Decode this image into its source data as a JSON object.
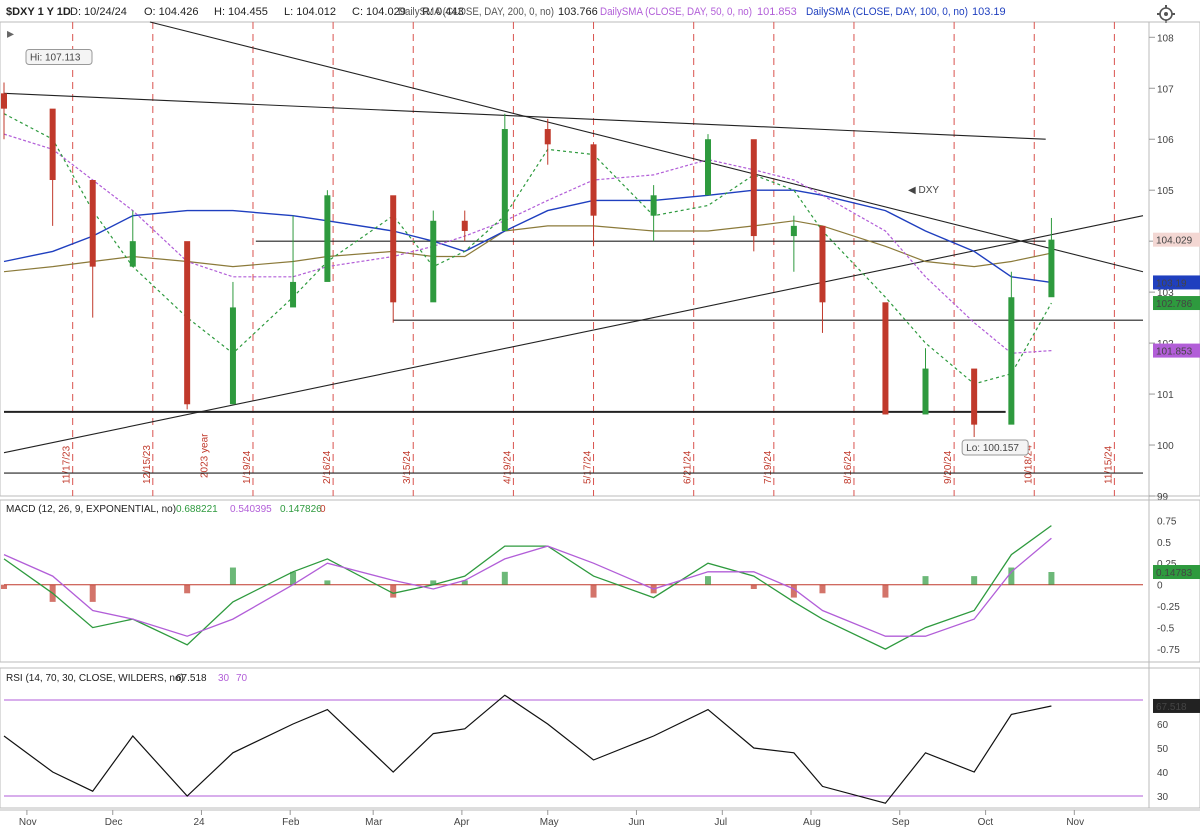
{
  "header": {
    "symbol": "$DXY 1 Y 1D",
    "date": "D: 10/24/24",
    "open": "O: 104.426",
    "high": "H: 104.455",
    "low": "L: 104.012",
    "close": "C: 104.029",
    "range": "R: 0.443",
    "sma200_label": "DailySMA (CLOSE, DAY, 200, 0, no)",
    "sma200_value": "103.766",
    "sma50_label": "DailySMA (CLOSE, DAY, 50, 0, no)",
    "sma50_value": "101.853",
    "sma100_label": "DailySMA (CLOSE, DAY, 100, 0, no)",
    "sma100_value": "103.19",
    "sma20_label": "DailySMA (CLOSE, DAY, 20,"
  },
  "icons": {
    "settings": "gear-icon",
    "expand": "expand-icon",
    "collapse": "collapse-icon"
  },
  "colors": {
    "up": "#2e9a3e",
    "down": "#c0392b",
    "sma200": "#8b7a3a",
    "sma100": "#1f3fbf",
    "sma50": "#b25ed8",
    "sma20": "#2e9a3e",
    "trend": "#222222",
    "vline": "#d9534f",
    "rsi_band": "#b25ed8"
  },
  "annotations": {
    "hi_label": "Hi: 107.113",
    "lo_label": "Lo: 100.157",
    "symbol_marker": "DXY",
    "year_marker": "2023 year",
    "last_price": "104.029",
    "sma100_tag": "103.19",
    "sma20_tag": "102.786",
    "sma50_tag": "101.853"
  },
  "axes": {
    "x_months": [
      "Nov",
      "Dec",
      "24",
      "Feb",
      "Mar",
      "Apr",
      "May",
      "Jun",
      "Jul",
      "Aug",
      "Sep",
      "Oct",
      "Nov"
    ],
    "price_ticks": [
      "108",
      "107",
      "106",
      "105",
      "104",
      "103",
      "102",
      "101",
      "100",
      "99"
    ],
    "vertical_dates": [
      "11/17/23",
      "12/15/23",
      "1/19/24",
      "2/16/24",
      "3/15/24",
      "4/19/24",
      "5/17/24",
      "6/21/24",
      "7/19/24",
      "8/16/24",
      "9/20/24",
      "10/18/24",
      "11/15/24"
    ],
    "macd_ticks": [
      "0.75",
      "0.5",
      "0.25",
      "0",
      "-0.25",
      "-0.5",
      "-0.75"
    ],
    "rsi_ticks": [
      "60",
      "50",
      "40",
      "30"
    ]
  },
  "macd": {
    "label": "MACD (12, 26, 9, EXPONENTIAL, no)",
    "value": "0.688221",
    "avg": "0.540395",
    "diff": "0.147826",
    "zero": "0",
    "tag": "0.14783"
  },
  "rsi": {
    "label": "RSI (14, 70, 30, CLOSE, WILDERS, no)",
    "value": "67.518",
    "low": "30",
    "high": "70",
    "tag": "67.518"
  },
  "chart_data": [
    {
      "type": "candlestick",
      "title": "$DXY 1 Y 1D",
      "ylim": [
        99,
        108.3
      ],
      "x_range": [
        "2023-10-24",
        "2024-11-25"
      ],
      "dates": [
        "2023-10-24",
        "2023-11-10",
        "2023-11-24",
        "2023-12-08",
        "2023-12-27",
        "2024-01-12",
        "2024-02-02",
        "2024-02-14",
        "2024-03-08",
        "2024-03-22",
        "2024-04-02",
        "2024-04-16",
        "2024-05-01",
        "2024-05-17",
        "2024-06-07",
        "2024-06-26",
        "2024-07-12",
        "2024-07-26",
        "2024-08-05",
        "2024-08-27",
        "2024-09-10",
        "2024-09-27",
        "2024-10-10",
        "2024-10-24"
      ],
      "close": [
        106.6,
        105.2,
        103.5,
        104.0,
        100.8,
        102.7,
        103.2,
        104.9,
        102.8,
        104.4,
        104.2,
        106.2,
        105.9,
        104.5,
        104.9,
        106.0,
        104.1,
        104.3,
        102.8,
        100.6,
        101.5,
        100.4,
        102.9,
        104.03
      ],
      "high": [
        107.113,
        105.7,
        104.0,
        104.6,
        101.4,
        103.2,
        104.5,
        105.0,
        103.4,
        104.6,
        104.6,
        106.5,
        106.4,
        104.9,
        105.1,
        106.1,
        104.6,
        104.5,
        103.4,
        101.3,
        101.9,
        101.2,
        103.4,
        104.455
      ],
      "low": [
        106.0,
        104.3,
        102.5,
        103.6,
        100.7,
        102.2,
        102.9,
        103.9,
        102.4,
        103.4,
        104.0,
        105.8,
        105.5,
        103.9,
        104.0,
        105.5,
        103.8,
        103.4,
        102.2,
        100.6,
        100.8,
        100.157,
        102.4,
        104.012
      ],
      "hi": 107.113,
      "lo": 100.157,
      "last": 104.029,
      "series": [
        {
          "name": "DailySMA (CLOSE, DAY, 200, 0, no)",
          "values": [
            103.4,
            103.5,
            103.6,
            103.7,
            103.6,
            103.5,
            103.6,
            103.7,
            103.8,
            103.7,
            103.7,
            104.2,
            104.3,
            104.3,
            104.2,
            104.2,
            104.3,
            104.4,
            104.3,
            103.9,
            103.6,
            103.5,
            103.6,
            103.766
          ]
        },
        {
          "name": "DailySMA (CLOSE, DAY, 100, 0, no)",
          "values": [
            103.6,
            103.8,
            104.1,
            104.5,
            104.6,
            104.6,
            104.5,
            104.4,
            104.2,
            104.0,
            103.8,
            104.2,
            104.6,
            104.8,
            104.8,
            104.9,
            105.0,
            105.0,
            104.9,
            104.6,
            104.2,
            103.8,
            103.3,
            103.19
          ]
        },
        {
          "name": "DailySMA (CLOSE, DAY, 50, 0, no)",
          "values": [
            106.1,
            105.8,
            105.2,
            104.6,
            103.6,
            103.3,
            103.3,
            103.5,
            103.7,
            103.9,
            104.1,
            104.4,
            104.8,
            105.2,
            105.3,
            105.6,
            105.4,
            105.2,
            104.9,
            104.2,
            103.3,
            102.4,
            101.8,
            101.853
          ]
        },
        {
          "name": "DailySMA (CLOSE, DAY, 20, 0, no)",
          "values": [
            106.5,
            106.0,
            104.6,
            103.5,
            102.5,
            101.8,
            102.9,
            103.6,
            104.5,
            103.5,
            103.8,
            104.5,
            105.8,
            105.7,
            104.5,
            104.7,
            105.3,
            105.0,
            104.2,
            102.9,
            102.0,
            101.2,
            101.4,
            102.786
          ]
        }
      ],
      "trendlines": [
        {
          "from": [
            "2023-10-24",
            106.9
          ],
          "to": [
            "2024-10-22",
            106.0
          ]
        },
        {
          "from": [
            "2023-10-24",
            99.85
          ],
          "to": [
            "2024-11-25",
            104.5
          ]
        },
        {
          "from": [
            "2023-12-14",
            108.3
          ],
          "to": [
            "2024-11-25",
            103.4
          ]
        },
        {
          "y": 104.0,
          "from_date": "2024-01-20",
          "to_date": "2024-10-22"
        },
        {
          "y": 102.45,
          "from_date": "2024-03-08",
          "to_date": "2024-11-25"
        },
        {
          "y": 100.65,
          "from_date": "2023-10-24",
          "to_date": "2024-10-08"
        },
        {
          "y": 99.45,
          "from_date": "2023-10-24",
          "to_date": "2024-11-25"
        }
      ]
    },
    {
      "type": "line",
      "title": "MACD (12, 26, 9, EXPONENTIAL, no)",
      "ylim": [
        -0.9,
        0.8
      ],
      "dates": [
        "2023-10-24",
        "2023-11-10",
        "2023-11-24",
        "2023-12-08",
        "2023-12-27",
        "2024-01-12",
        "2024-02-02",
        "2024-02-14",
        "2024-03-08",
        "2024-03-22",
        "2024-04-02",
        "2024-04-16",
        "2024-05-01",
        "2024-05-17",
        "2024-06-07",
        "2024-06-26",
        "2024-07-12",
        "2024-07-26",
        "2024-08-05",
        "2024-08-27",
        "2024-09-10",
        "2024-09-27",
        "2024-10-10",
        "2024-10-24"
      ],
      "series": [
        {
          "name": "Value",
          "values": [
            0.3,
            -0.1,
            -0.5,
            -0.4,
            -0.7,
            -0.2,
            0.15,
            0.3,
            -0.1,
            0.0,
            0.1,
            0.45,
            0.45,
            0.1,
            -0.15,
            0.25,
            0.1,
            -0.2,
            -0.4,
            -0.75,
            -0.5,
            -0.3,
            0.35,
            0.688221
          ]
        },
        {
          "name": "Avg",
          "values": [
            0.35,
            0.1,
            -0.3,
            -0.4,
            -0.6,
            -0.4,
            0.0,
            0.25,
            0.05,
            -0.05,
            0.05,
            0.3,
            0.45,
            0.25,
            -0.05,
            0.15,
            0.15,
            -0.05,
            -0.3,
            -0.6,
            -0.6,
            -0.4,
            0.15,
            0.540395
          ]
        },
        {
          "name": "Diff",
          "values": [
            -0.05,
            -0.2,
            -0.2,
            0.0,
            -0.1,
            0.2,
            0.15,
            0.05,
            -0.15,
            0.05,
            0.05,
            0.15,
            0.0,
            -0.15,
            -0.1,
            0.1,
            -0.05,
            -0.15,
            -0.1,
            -0.15,
            0.1,
            0.1,
            0.2,
            0.147826
          ]
        }
      ]
    },
    {
      "type": "line",
      "title": "RSI (14, 70, 30, CLOSE, WILDERS, no)",
      "ylim": [
        25,
        75
      ],
      "bands": [
        30,
        70
      ],
      "dates": [
        "2023-10-24",
        "2023-11-10",
        "2023-11-24",
        "2023-12-08",
        "2023-12-27",
        "2024-01-12",
        "2024-02-02",
        "2024-02-14",
        "2024-03-08",
        "2024-03-22",
        "2024-04-02",
        "2024-04-16",
        "2024-05-01",
        "2024-05-17",
        "2024-06-07",
        "2024-06-26",
        "2024-07-12",
        "2024-07-26",
        "2024-08-05",
        "2024-08-27",
        "2024-09-10",
        "2024-09-27",
        "2024-10-10",
        "2024-10-24"
      ],
      "series": [
        {
          "name": "RSI",
          "values": [
            55,
            40,
            32,
            55,
            30,
            48,
            60,
            66,
            40,
            56,
            58,
            72,
            60,
            45,
            55,
            66,
            50,
            48,
            34,
            27,
            48,
            40,
            64,
            67.518
          ]
        }
      ]
    }
  ]
}
